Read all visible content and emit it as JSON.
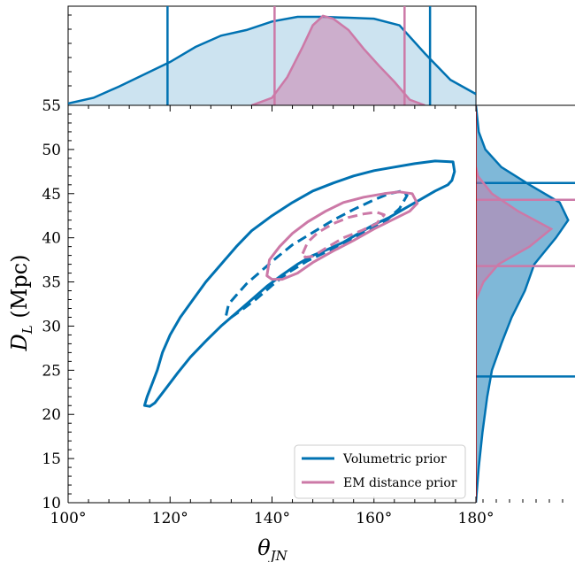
{
  "chart_data": {
    "type": "contour",
    "xlabel": "θ",
    "xlabel_sub": "JN",
    "ylabel": "D",
    "ylabel_sub": "L",
    "ylabel_unit": " (Mpc)",
    "xlim": [
      100,
      180
    ],
    "ylim": [
      10,
      55
    ],
    "x_ticks": [
      {
        "value": 100,
        "label": "100°"
      },
      {
        "value": 120,
        "label": "120°"
      },
      {
        "value": 140,
        "label": "140°"
      },
      {
        "value": 160,
        "label": "160°"
      },
      {
        "value": 180,
        "label": "180°"
      }
    ],
    "y_ticks": [
      {
        "value": 10,
        "label": "10"
      },
      {
        "value": 15,
        "label": "15"
      },
      {
        "value": 20,
        "label": "20"
      },
      {
        "value": 25,
        "label": "25"
      },
      {
        "value": 30,
        "label": "30"
      },
      {
        "value": 35,
        "label": "35"
      },
      {
        "value": 40,
        "label": "40"
      },
      {
        "value": 45,
        "label": "45"
      },
      {
        "value": 50,
        "label": "50"
      },
      {
        "value": 55,
        "label": "55"
      }
    ],
    "legend_position": "lower-right",
    "colors": {
      "volumetric": "#0072b2",
      "em": "#cc79a7"
    },
    "series": [
      {
        "name": "Volumetric prior",
        "color": "#0072b2",
        "contours": [
          {
            "level": "outer",
            "style": "solid",
            "points": [
              [
                115,
                21
              ],
              [
                115.5,
                22
              ],
              [
                116.5,
                23.5
              ],
              [
                117.5,
                25
              ],
              [
                118.5,
                27
              ],
              [
                120,
                29
              ],
              [
                122,
                31
              ],
              [
                124.5,
                33
              ],
              [
                127,
                35
              ],
              [
                130,
                37
              ],
              [
                133,
                39
              ],
              [
                136,
                40.8
              ],
              [
                140,
                42.5
              ],
              [
                144,
                44
              ],
              [
                148,
                45.3
              ],
              [
                152,
                46.2
              ],
              [
                156,
                47
              ],
              [
                160,
                47.6
              ],
              [
                164,
                48
              ],
              [
                168,
                48.4
              ],
              [
                172,
                48.7
              ],
              [
                175.5,
                48.6
              ],
              [
                175.8,
                47.5
              ],
              [
                175.3,
                46.5
              ],
              [
                174.5,
                46
              ],
              [
                172,
                45.3
              ],
              [
                169,
                44.3
              ],
              [
                166,
                43.3
              ],
              [
                163,
                42.3
              ],
              [
                160,
                41.5
              ],
              [
                157,
                40.5
              ],
              [
                154,
                39.5
              ],
              [
                151,
                38.7
              ],
              [
                148,
                38
              ],
              [
                145,
                37
              ],
              [
                142,
                35.8
              ],
              [
                139,
                34.5
              ],
              [
                136,
                33
              ],
              [
                133,
                31.5
              ],
              [
                130,
                30
              ],
              [
                127,
                28.3
              ],
              [
                124,
                26.5
              ],
              [
                121.5,
                24.7
              ],
              [
                119,
                22.8
              ],
              [
                117,
                21.3
              ],
              [
                116,
                20.9
              ],
              [
                115,
                21
              ]
            ]
          },
          {
            "level": "inner",
            "style": "dashed",
            "points": [
              [
                131,
                31.2
              ],
              [
                131.5,
                32.5
              ],
              [
                133,
                33.5
              ],
              [
                135,
                34.8
              ],
              [
                138,
                36.3
              ],
              [
                141,
                37.8
              ],
              [
                144,
                39.2
              ],
              [
                148,
                40.6
              ],
              [
                152,
                42
              ],
              [
                156,
                43.2
              ],
              [
                160,
                44.3
              ],
              [
                163,
                45
              ],
              [
                165.5,
                45.3
              ],
              [
                166.5,
                44.8
              ],
              [
                165,
                43.3
              ],
              [
                162.5,
                42
              ],
              [
                159,
                40.8
              ],
              [
                155,
                39.6
              ],
              [
                151,
                38.5
              ],
              [
                147,
                37.4
              ],
              [
                143,
                36
              ],
              [
                140,
                34.6
              ],
              [
                137,
                33.1
              ],
              [
                134,
                31.8
              ],
              [
                132,
                31
              ],
              [
                131,
                31.2
              ]
            ]
          }
        ],
        "marginal_x_intervals": [
          119.5,
          171
        ],
        "marginal_y_intervals": [
          24.3,
          46.2
        ]
      },
      {
        "name": "EM distance prior",
        "color": "#cc79a7",
        "contours": [
          {
            "level": "outer",
            "style": "solid",
            "points": [
              [
                139,
                35.7
              ],
              [
                139.5,
                37.5
              ],
              [
                141.5,
                39
              ],
              [
                144,
                40.5
              ],
              [
                147,
                41.8
              ],
              [
                150.5,
                43
              ],
              [
                154,
                44
              ],
              [
                158,
                44.6
              ],
              [
                162,
                45
              ],
              [
                165,
                45.2
              ],
              [
                167.5,
                45
              ],
              [
                168.5,
                43.9
              ],
              [
                167,
                43
              ],
              [
                163.5,
                42
              ],
              [
                160,
                41
              ],
              [
                156,
                39.7
              ],
              [
                152,
                38.5
              ],
              [
                148,
                37.2
              ],
              [
                145,
                36
              ],
              [
                142,
                35.3
              ],
              [
                140,
                35.3
              ],
              [
                139,
                35.7
              ]
            ]
          },
          {
            "level": "inner",
            "style": "dashed",
            "points": [
              [
                146,
                38.2
              ],
              [
                147,
                39.5
              ],
              [
                149,
                40.6
              ],
              [
                152,
                41.6
              ],
              [
                155,
                42.3
              ],
              [
                158,
                42.7
              ],
              [
                160.5,
                42.9
              ],
              [
                162,
                42.6
              ],
              [
                160.5,
                41.6
              ],
              [
                157.5,
                40.8
              ],
              [
                154,
                40
              ],
              [
                150.5,
                38.8
              ],
              [
                148,
                37.9
              ],
              [
                146.5,
                37.8
              ],
              [
                146,
                38.2
              ]
            ]
          }
        ],
        "marginal_x_intervals": [
          140.5,
          166
        ],
        "marginal_y_intervals": [
          36.8,
          44.3
        ]
      }
    ],
    "marginal_x": {
      "Volumetric prior": [
        [
          100,
          0.02
        ],
        [
          105,
          0.08
        ],
        [
          110,
          0.2
        ],
        [
          115,
          0.33
        ],
        [
          120,
          0.46
        ],
        [
          125,
          0.62
        ],
        [
          130,
          0.74
        ],
        [
          135,
          0.8
        ],
        [
          140,
          0.89
        ],
        [
          145,
          0.94
        ],
        [
          150,
          0.94
        ],
        [
          155,
          0.93
        ],
        [
          160,
          0.92
        ],
        [
          165,
          0.85
        ],
        [
          170,
          0.55
        ],
        [
          175,
          0.27
        ],
        [
          180,
          0.12
        ]
      ],
      "EM distance prior": [
        [
          136,
          0
        ],
        [
          140,
          0.08
        ],
        [
          143,
          0.3
        ],
        [
          146,
          0.62
        ],
        [
          148,
          0.85
        ],
        [
          150,
          0.95
        ],
        [
          152,
          0.92
        ],
        [
          155,
          0.8
        ],
        [
          158,
          0.6
        ],
        [
          161,
          0.42
        ],
        [
          164,
          0.25
        ],
        [
          167,
          0.06
        ],
        [
          170,
          0
        ]
      ]
    },
    "marginal_y": {
      "Volumetric prior": [
        [
          10,
          0
        ],
        [
          14,
          0.03
        ],
        [
          18,
          0.07
        ],
        [
          22,
          0.12
        ],
        [
          25,
          0.17
        ],
        [
          28,
          0.27
        ],
        [
          31,
          0.38
        ],
        [
          34,
          0.52
        ],
        [
          37,
          0.62
        ],
        [
          40,
          0.85
        ],
        [
          42,
          0.98
        ],
        [
          44,
          0.89
        ],
        [
          46,
          0.57
        ],
        [
          48,
          0.27
        ],
        [
          50,
          0.1
        ],
        [
          52,
          0.03
        ],
        [
          55,
          0
        ]
      ],
      "EM distance prior": [
        [
          33,
          0
        ],
        [
          35,
          0.08
        ],
        [
          37,
          0.24
        ],
        [
          39,
          0.57
        ],
        [
          41,
          0.8
        ],
        [
          43,
          0.45
        ],
        [
          45,
          0.17
        ],
        [
          47,
          0.02
        ],
        [
          48,
          0
        ]
      ]
    }
  }
}
